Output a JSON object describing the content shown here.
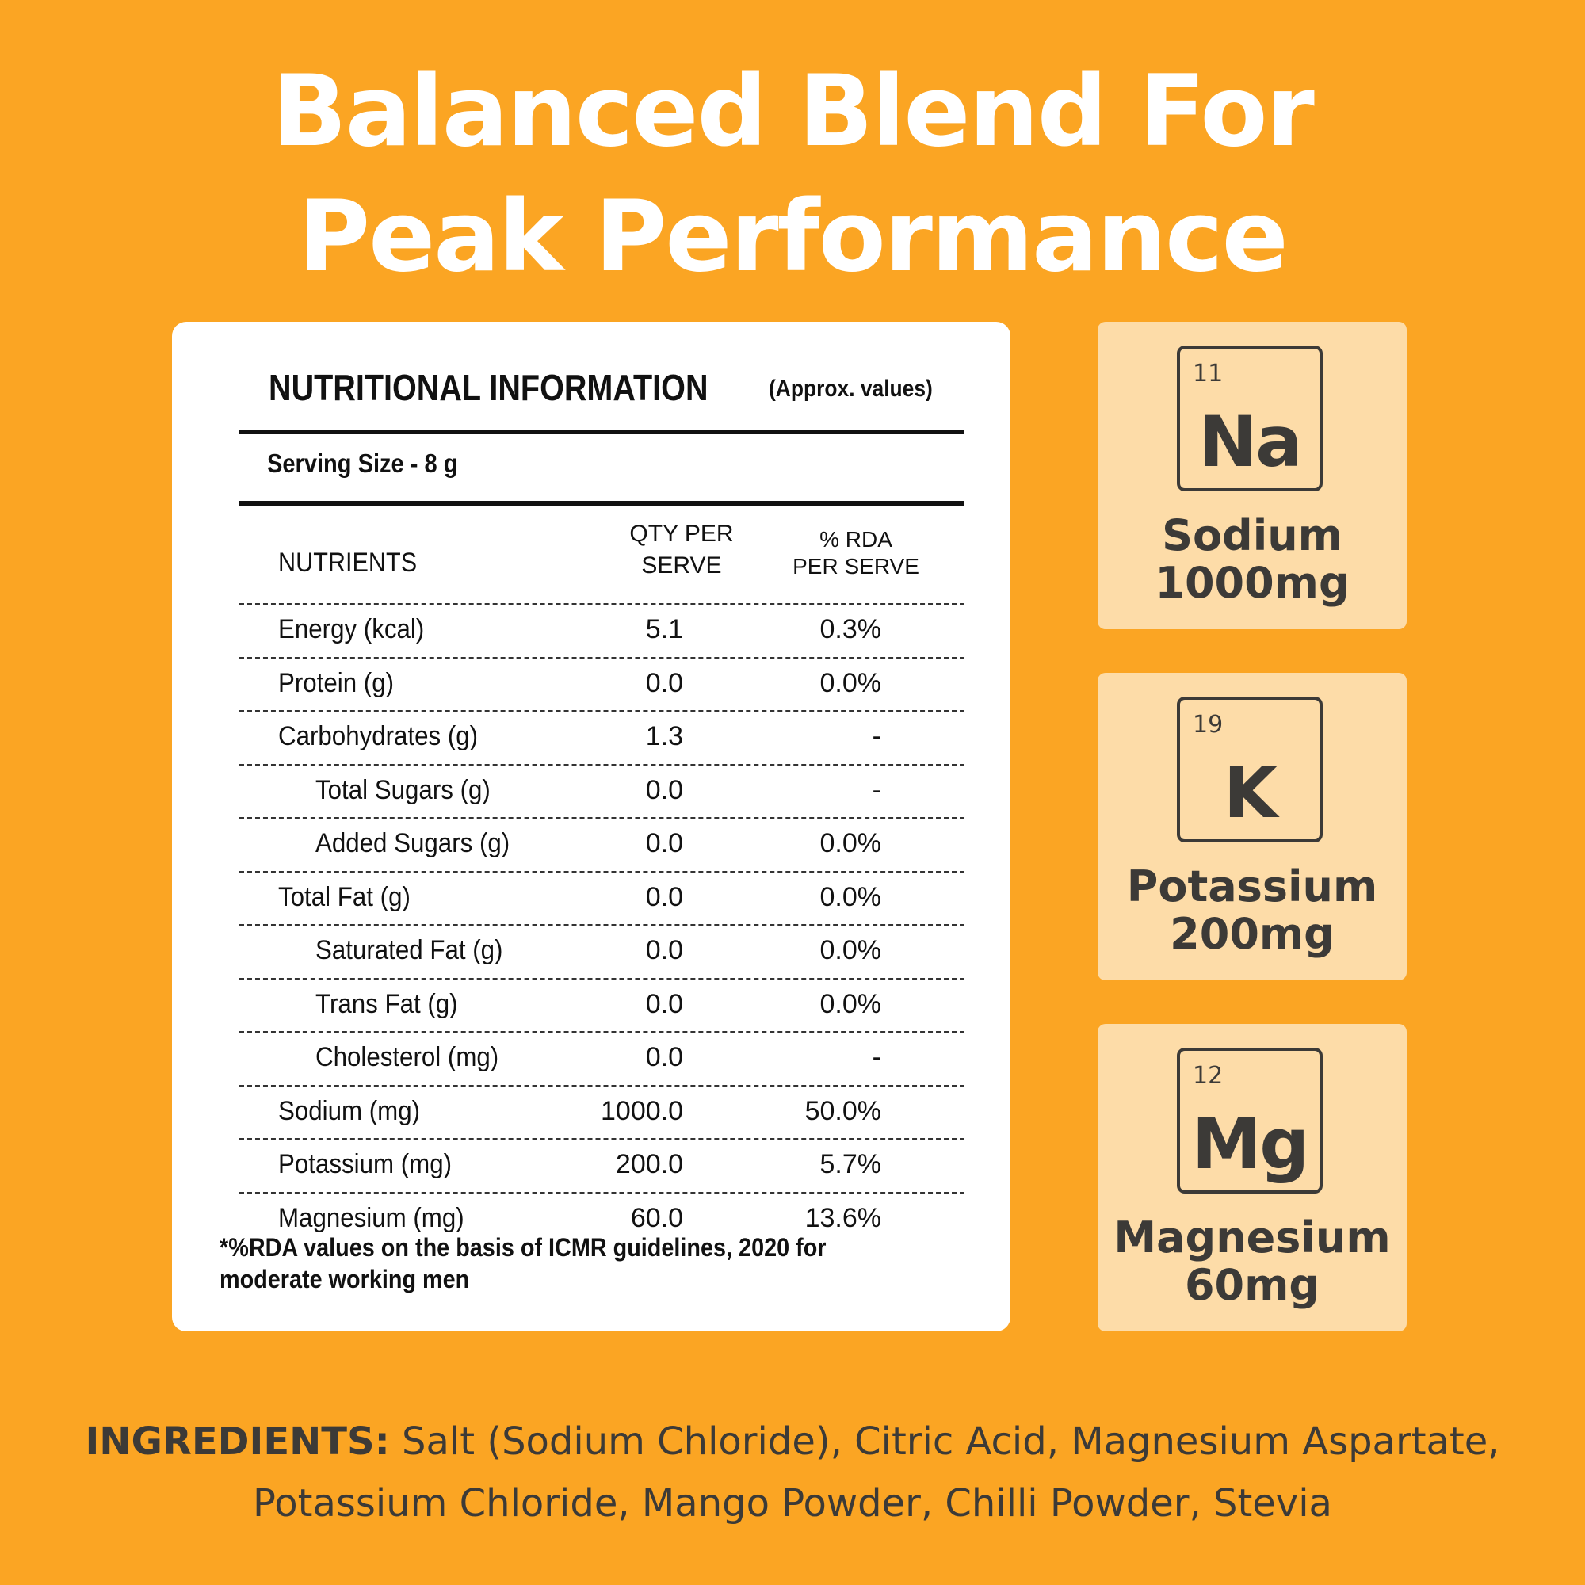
{
  "headline": {
    "line1": "Balanced Blend For",
    "line2": "Peak Performance"
  },
  "nutrition": {
    "title": "NUTRITIONAL INFORMATION",
    "title_note": "(Approx. values)",
    "serving_size": "Serving Size - 8 g",
    "headers": {
      "nutrients": "NUTRIENTS",
      "qty_line1": "QTY PER",
      "qty_line2": "SERVE",
      "rda_line1": "% RDA",
      "rda_line2": "PER SERVE"
    },
    "rows": [
      {
        "name": "Energy (kcal)",
        "qty": "5.1",
        "rda": "0.3%"
      },
      {
        "name": "Protein (g)",
        "qty": "0.0",
        "rda": "0.0%"
      },
      {
        "name": "Carbohydrates (g)",
        "qty": "1.3",
        "rda": "-"
      },
      {
        "name": "Total Sugars (g)",
        "qty": "0.0",
        "rda": "-"
      },
      {
        "name": "Added Sugars (g)",
        "qty": "0.0",
        "rda": "0.0%"
      },
      {
        "name": "Total Fat (g)",
        "qty": "0.0",
        "rda": "0.0%"
      },
      {
        "name": "Saturated Fat (g)",
        "qty": "0.0",
        "rda": "0.0%"
      },
      {
        "name": "Trans Fat (g)",
        "qty": "0.0",
        "rda": "0.0%"
      },
      {
        "name": "Cholesterol (mg)",
        "qty": "0.0",
        "rda": "-"
      },
      {
        "name": "Sodium  (mg)",
        "qty": "1000.0",
        "rda": "50.0%"
      },
      {
        "name": "Potassium (mg)",
        "qty": "200.0",
        "rda": "5.7%"
      },
      {
        "name": "Magnesium (mg)",
        "qty": "60.0",
        "rda": "13.6%"
      }
    ],
    "footnote": "*%RDA values on the basis of ICMR guidelines, 2020 for moderate working men"
  },
  "elements": [
    {
      "number": "11",
      "symbol": "Na",
      "name": "Sodium",
      "amount": "1000mg"
    },
    {
      "number": "19",
      "symbol": "K",
      "name": "Potassium",
      "amount": "200mg"
    },
    {
      "number": "12",
      "symbol": "Mg",
      "name": "Magnesium",
      "amount": "60mg"
    }
  ],
  "ingredients": {
    "label": "INGREDIENTS:",
    "text": " Salt (Sodium Chloride), Citric Acid, Magnesium Aspartate, Potassium Chloride, Mango Powder, Chilli Powder, Stevia"
  },
  "colors": {
    "background": "#FBA523",
    "tile": "#FDDCA8",
    "text_dark": "#3c3a37",
    "card": "#ffffff"
  }
}
